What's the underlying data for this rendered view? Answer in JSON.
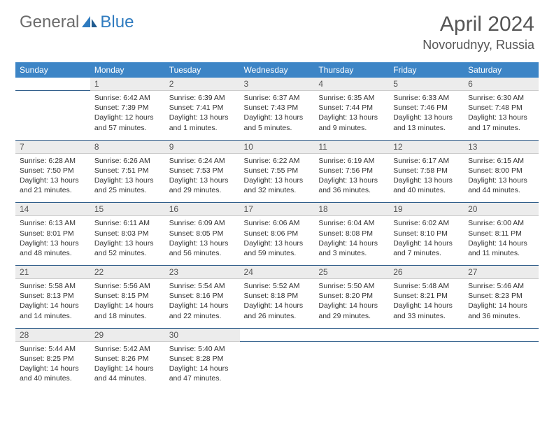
{
  "brand": {
    "general": "General",
    "blue": "Blue"
  },
  "title": {
    "month": "April 2024",
    "location": "Novorudnyy, Russia"
  },
  "colors": {
    "header_bg": "#3d85c6",
    "header_fg": "#ffffff",
    "daynum_bg": "#ececec",
    "border": "#2f5d8a",
    "text": "#333333",
    "title_color": "#555555",
    "logo_blue": "#2f7bbf",
    "logo_gray": "#6b6b6b"
  },
  "dayNames": [
    "Sunday",
    "Monday",
    "Tuesday",
    "Wednesday",
    "Thursday",
    "Friday",
    "Saturday"
  ],
  "weeks": [
    {
      "nums": [
        "",
        "1",
        "2",
        "3",
        "4",
        "5",
        "6"
      ],
      "cells": [
        null,
        {
          "sunrise": "Sunrise: 6:42 AM",
          "sunset": "Sunset: 7:39 PM",
          "day1": "Daylight: 12 hours",
          "day2": "and 57 minutes."
        },
        {
          "sunrise": "Sunrise: 6:39 AM",
          "sunset": "Sunset: 7:41 PM",
          "day1": "Daylight: 13 hours",
          "day2": "and 1 minutes."
        },
        {
          "sunrise": "Sunrise: 6:37 AM",
          "sunset": "Sunset: 7:43 PM",
          "day1": "Daylight: 13 hours",
          "day2": "and 5 minutes."
        },
        {
          "sunrise": "Sunrise: 6:35 AM",
          "sunset": "Sunset: 7:44 PM",
          "day1": "Daylight: 13 hours",
          "day2": "and 9 minutes."
        },
        {
          "sunrise": "Sunrise: 6:33 AM",
          "sunset": "Sunset: 7:46 PM",
          "day1": "Daylight: 13 hours",
          "day2": "and 13 minutes."
        },
        {
          "sunrise": "Sunrise: 6:30 AM",
          "sunset": "Sunset: 7:48 PM",
          "day1": "Daylight: 13 hours",
          "day2": "and 17 minutes."
        }
      ]
    },
    {
      "nums": [
        "7",
        "8",
        "9",
        "10",
        "11",
        "12",
        "13"
      ],
      "cells": [
        {
          "sunrise": "Sunrise: 6:28 AM",
          "sunset": "Sunset: 7:50 PM",
          "day1": "Daylight: 13 hours",
          "day2": "and 21 minutes."
        },
        {
          "sunrise": "Sunrise: 6:26 AM",
          "sunset": "Sunset: 7:51 PM",
          "day1": "Daylight: 13 hours",
          "day2": "and 25 minutes."
        },
        {
          "sunrise": "Sunrise: 6:24 AM",
          "sunset": "Sunset: 7:53 PM",
          "day1": "Daylight: 13 hours",
          "day2": "and 29 minutes."
        },
        {
          "sunrise": "Sunrise: 6:22 AM",
          "sunset": "Sunset: 7:55 PM",
          "day1": "Daylight: 13 hours",
          "day2": "and 32 minutes."
        },
        {
          "sunrise": "Sunrise: 6:19 AM",
          "sunset": "Sunset: 7:56 PM",
          "day1": "Daylight: 13 hours",
          "day2": "and 36 minutes."
        },
        {
          "sunrise": "Sunrise: 6:17 AM",
          "sunset": "Sunset: 7:58 PM",
          "day1": "Daylight: 13 hours",
          "day2": "and 40 minutes."
        },
        {
          "sunrise": "Sunrise: 6:15 AM",
          "sunset": "Sunset: 8:00 PM",
          "day1": "Daylight: 13 hours",
          "day2": "and 44 minutes."
        }
      ]
    },
    {
      "nums": [
        "14",
        "15",
        "16",
        "17",
        "18",
        "19",
        "20"
      ],
      "cells": [
        {
          "sunrise": "Sunrise: 6:13 AM",
          "sunset": "Sunset: 8:01 PM",
          "day1": "Daylight: 13 hours",
          "day2": "and 48 minutes."
        },
        {
          "sunrise": "Sunrise: 6:11 AM",
          "sunset": "Sunset: 8:03 PM",
          "day1": "Daylight: 13 hours",
          "day2": "and 52 minutes."
        },
        {
          "sunrise": "Sunrise: 6:09 AM",
          "sunset": "Sunset: 8:05 PM",
          "day1": "Daylight: 13 hours",
          "day2": "and 56 minutes."
        },
        {
          "sunrise": "Sunrise: 6:06 AM",
          "sunset": "Sunset: 8:06 PM",
          "day1": "Daylight: 13 hours",
          "day2": "and 59 minutes."
        },
        {
          "sunrise": "Sunrise: 6:04 AM",
          "sunset": "Sunset: 8:08 PM",
          "day1": "Daylight: 14 hours",
          "day2": "and 3 minutes."
        },
        {
          "sunrise": "Sunrise: 6:02 AM",
          "sunset": "Sunset: 8:10 PM",
          "day1": "Daylight: 14 hours",
          "day2": "and 7 minutes."
        },
        {
          "sunrise": "Sunrise: 6:00 AM",
          "sunset": "Sunset: 8:11 PM",
          "day1": "Daylight: 14 hours",
          "day2": "and 11 minutes."
        }
      ]
    },
    {
      "nums": [
        "21",
        "22",
        "23",
        "24",
        "25",
        "26",
        "27"
      ],
      "cells": [
        {
          "sunrise": "Sunrise: 5:58 AM",
          "sunset": "Sunset: 8:13 PM",
          "day1": "Daylight: 14 hours",
          "day2": "and 14 minutes."
        },
        {
          "sunrise": "Sunrise: 5:56 AM",
          "sunset": "Sunset: 8:15 PM",
          "day1": "Daylight: 14 hours",
          "day2": "and 18 minutes."
        },
        {
          "sunrise": "Sunrise: 5:54 AM",
          "sunset": "Sunset: 8:16 PM",
          "day1": "Daylight: 14 hours",
          "day2": "and 22 minutes."
        },
        {
          "sunrise": "Sunrise: 5:52 AM",
          "sunset": "Sunset: 8:18 PM",
          "day1": "Daylight: 14 hours",
          "day2": "and 26 minutes."
        },
        {
          "sunrise": "Sunrise: 5:50 AM",
          "sunset": "Sunset: 8:20 PM",
          "day1": "Daylight: 14 hours",
          "day2": "and 29 minutes."
        },
        {
          "sunrise": "Sunrise: 5:48 AM",
          "sunset": "Sunset: 8:21 PM",
          "day1": "Daylight: 14 hours",
          "day2": "and 33 minutes."
        },
        {
          "sunrise": "Sunrise: 5:46 AM",
          "sunset": "Sunset: 8:23 PM",
          "day1": "Daylight: 14 hours",
          "day2": "and 36 minutes."
        }
      ]
    },
    {
      "nums": [
        "28",
        "29",
        "30",
        "",
        "",
        "",
        ""
      ],
      "cells": [
        {
          "sunrise": "Sunrise: 5:44 AM",
          "sunset": "Sunset: 8:25 PM",
          "day1": "Daylight: 14 hours",
          "day2": "and 40 minutes."
        },
        {
          "sunrise": "Sunrise: 5:42 AM",
          "sunset": "Sunset: 8:26 PM",
          "day1": "Daylight: 14 hours",
          "day2": "and 44 minutes."
        },
        {
          "sunrise": "Sunrise: 5:40 AM",
          "sunset": "Sunset: 8:28 PM",
          "day1": "Daylight: 14 hours",
          "day2": "and 47 minutes."
        },
        null,
        null,
        null,
        null
      ]
    }
  ]
}
